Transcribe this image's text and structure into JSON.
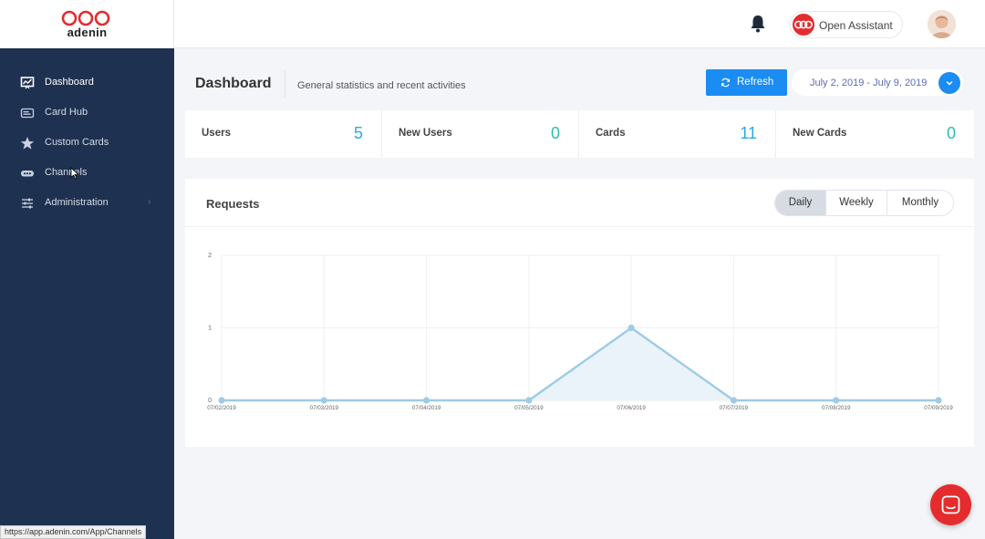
{
  "brand": {
    "name": "adenin"
  },
  "header": {
    "assistant_label": "Open Assistant"
  },
  "sidebar": {
    "items": [
      {
        "label": "Dashboard",
        "icon": "dashboard-icon",
        "active": true
      },
      {
        "label": "Card Hub",
        "icon": "card-hub-icon"
      },
      {
        "label": "Custom Cards",
        "icon": "star-icon"
      },
      {
        "label": "Channels",
        "icon": "channels-icon"
      },
      {
        "label": "Administration",
        "icon": "sliders-icon",
        "chevron": "›"
      }
    ]
  },
  "page": {
    "title": "Dashboard",
    "subtitle": "General statistics and recent activities",
    "refresh_label": "Refresh",
    "date_range": "July 2, 2019 - July 9, 2019"
  },
  "stats": [
    {
      "label": "Users",
      "value": "5"
    },
    {
      "label": "New Users",
      "value": "0"
    },
    {
      "label": "Cards",
      "value": "11"
    },
    {
      "label": "New Cards",
      "value": "0"
    }
  ],
  "requests": {
    "title": "Requests",
    "periods": [
      "Daily",
      "Weekly",
      "Monthly"
    ],
    "active_period": "Daily"
  },
  "chart_data": {
    "type": "area",
    "x": [
      "07/02/2019",
      "07/03/2019",
      "07/04/2019",
      "07/05/2019",
      "07/06/2019",
      "07/07/2019",
      "07/08/2019",
      "07/09/2019"
    ],
    "values": [
      0,
      0,
      0,
      0,
      1,
      0,
      0,
      0
    ],
    "yticks": [
      "0",
      "1",
      "2"
    ],
    "ylim": [
      0,
      2
    ],
    "grid": true,
    "color": "#9ecbe6"
  },
  "status_url": "https://app.adenin.com/App/Channels",
  "colors": {
    "sidebar": "#1e3150",
    "accent": "#1a8cf2",
    "brand_red": "#e42c2e"
  }
}
